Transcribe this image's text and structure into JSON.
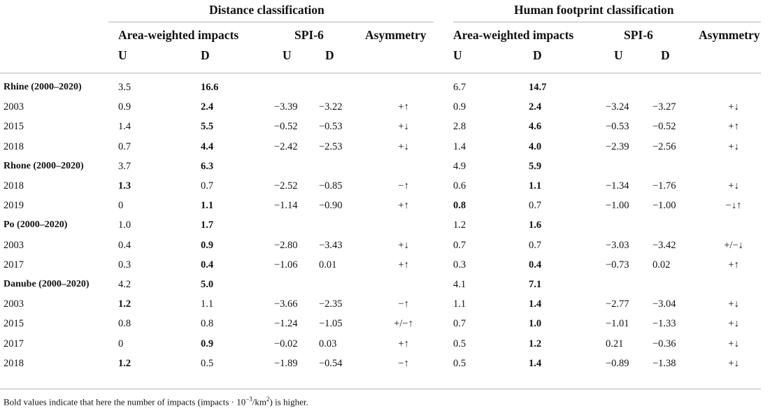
{
  "groups": {
    "distance": "Distance classification",
    "human": "Human footprint classification"
  },
  "subheaders": {
    "area": "Area-weighted impacts",
    "spi": "SPI-6",
    "asym": "Asymmetry",
    "u": "U",
    "d": "D"
  },
  "rows": [
    {
      "label": "Rhine (2000–2020)",
      "river": true,
      "dU": "3.5",
      "dD": "16.6",
      "dbold": "D",
      "dS1": "",
      "dS2": "",
      "dA": "",
      "hU": "6.7",
      "hD": "14.7",
      "hbold": "D",
      "hS1": "",
      "hS2": "",
      "hA": ""
    },
    {
      "label": "2003",
      "river": false,
      "dU": "0.9",
      "dD": "2.4",
      "dbold": "D",
      "dS1": "−3.39",
      "dS2": "−3.22",
      "dA": "+↑",
      "hU": "0.9",
      "hD": "2.4",
      "hbold": "D",
      "hS1": "−3.24",
      "hS2": "−3.27",
      "hA": "+↓"
    },
    {
      "label": "2015",
      "river": false,
      "dU": "1.4",
      "dD": "5.5",
      "dbold": "D",
      "dS1": "−0.52",
      "dS2": "−0.53",
      "dA": "+↓",
      "hU": "2.8",
      "hD": "4.6",
      "hbold": "D",
      "hS1": "−0.53",
      "hS2": "−0.52",
      "hA": "+↑"
    },
    {
      "label": "2018",
      "river": false,
      "dU": "0.7",
      "dD": "4.4",
      "dbold": "D",
      "dS1": "−2.42",
      "dS2": "−2.53",
      "dA": "+↓",
      "hU": "1.4",
      "hD": "4.0",
      "hbold": "D",
      "hS1": "−2.39",
      "hS2": "−2.56",
      "hA": "+↓"
    },
    {
      "label": "Rhone (2000–2020)",
      "river": true,
      "dU": "3.7",
      "dD": "6.3",
      "dbold": "D",
      "dS1": "",
      "dS2": "",
      "dA": "",
      "hU": "4.9",
      "hD": "5.9",
      "hbold": "D",
      "hS1": "",
      "hS2": "",
      "hA": ""
    },
    {
      "label": "2018",
      "river": false,
      "dU": "1.3",
      "dD": "0.7",
      "dbold": "U",
      "dS1": "−2.52",
      "dS2": "−0.85",
      "dA": "−↑",
      "hU": "0.6",
      "hD": "1.1",
      "hbold": "D",
      "hS1": "−1.34",
      "hS2": "−1.76",
      "hA": "+↓"
    },
    {
      "label": "2019",
      "river": false,
      "dU": "0",
      "dD": "1.1",
      "dbold": "D",
      "dS1": "−1.14",
      "dS2": "−0.90",
      "dA": "+↑",
      "hU": "0.8",
      "hD": "0.7",
      "hbold": "U",
      "hS1": "−1.00",
      "hS2": "−1.00",
      "hA": "−↓↑"
    },
    {
      "label": "Po (2000–2020)",
      "river": true,
      "dU": "1.0",
      "dD": "1.7",
      "dbold": "D",
      "dS1": "",
      "dS2": "",
      "dA": "",
      "hU": "1.2",
      "hD": "1.6",
      "hbold": "D",
      "hS1": "",
      "hS2": "",
      "hA": ""
    },
    {
      "label": "2003",
      "river": false,
      "dU": "0.4",
      "dD": "0.9",
      "dbold": "D",
      "dS1": "−2.80",
      "dS2": "−3.43",
      "dA": "+↓",
      "hU": "0.7",
      "hD": "0.7",
      "hbold": "",
      "hS1": "−3.03",
      "hS2": "−3.42",
      "hA": "+/−↓"
    },
    {
      "label": "2017",
      "river": false,
      "dU": "0.3",
      "dD": "0.4",
      "dbold": "D",
      "dS1": "−1.06",
      "dS2": "0.01",
      "dA": "+↑",
      "hU": "0.3",
      "hD": "0.4",
      "hbold": "D",
      "hS1": "−0.73",
      "hS2": "0.02",
      "hA": "+↑"
    },
    {
      "label": "Danube (2000–2020)",
      "river": true,
      "dU": "4.2",
      "dD": "5.0",
      "dbold": "D",
      "dS1": "",
      "dS2": "",
      "dA": "",
      "hU": "4.1",
      "hD": "7.1",
      "hbold": "D",
      "hS1": "",
      "hS2": "",
      "hA": ""
    },
    {
      "label": "2003",
      "river": false,
      "dU": "1.2",
      "dD": "1.1",
      "dbold": "U",
      "dS1": "−3.66",
      "dS2": "−2.35",
      "dA": "−↑",
      "hU": "1.1",
      "hD": "1.4",
      "hbold": "D",
      "hS1": "−2.77",
      "hS2": "−3.04",
      "hA": "+↓"
    },
    {
      "label": "2015",
      "river": false,
      "dU": "0.8",
      "dD": "0.8",
      "dbold": "",
      "dS1": "−1.24",
      "dS2": "−1.05",
      "dA": "+/−↑",
      "hU": "0.7",
      "hD": "1.0",
      "hbold": "D",
      "hS1": "−1.01",
      "hS2": "−1.33",
      "hA": "+↓"
    },
    {
      "label": "2017",
      "river": false,
      "dU": "0",
      "dD": "0.9",
      "dbold": "D",
      "dS1": "−0.02",
      "dS2": "0.03",
      "dA": "+↑",
      "hU": "0.5",
      "hD": "1.2",
      "hbold": "D",
      "hS1": "0.21",
      "hS2": "−0.36",
      "hA": "+↓"
    },
    {
      "label": "2018",
      "river": false,
      "dU": "1.2",
      "dD": "0.5",
      "dbold": "U",
      "dS1": "−1.89",
      "dS2": "−0.54",
      "dA": "−↑",
      "hU": "0.5",
      "hD": "1.4",
      "hbold": "D",
      "hS1": "−0.89",
      "hS2": "−1.38",
      "hA": "+↓"
    }
  ],
  "footnote": {
    "before": "Bold values indicate that here the number of impacts (impacts · 10",
    "sup": "−3",
    "after": "/km",
    "sup2": "2",
    "end": ") is higher."
  }
}
